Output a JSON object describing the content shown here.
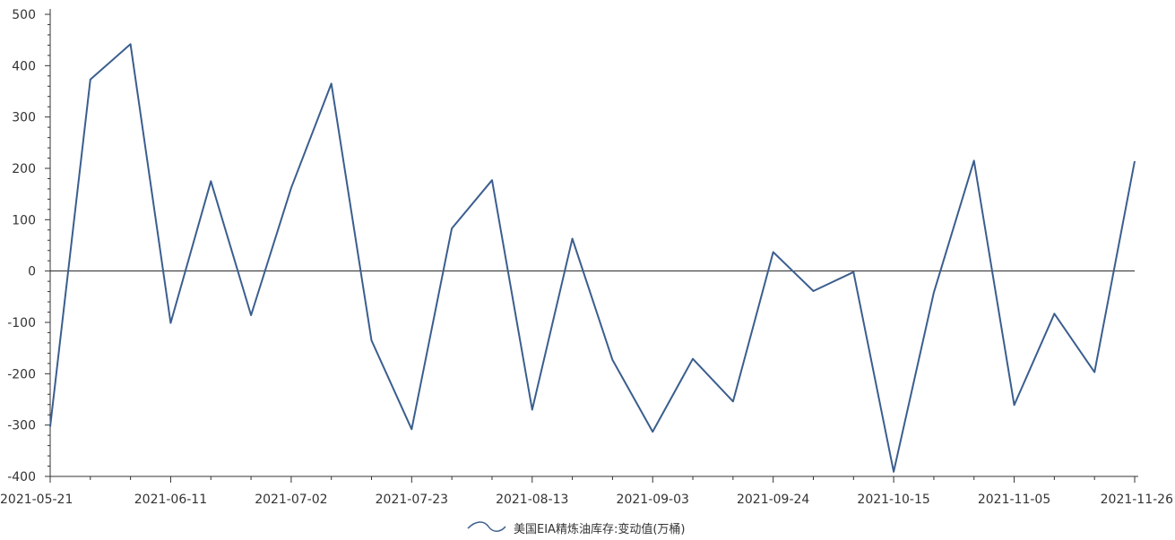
{
  "chart_data": {
    "type": "line",
    "title": "",
    "xlabel": "",
    "ylabel": "",
    "ylim": [
      -400,
      500
    ],
    "yticks": [
      -400,
      -300,
      -200,
      -100,
      0,
      100,
      200,
      300,
      400,
      500
    ],
    "x": [
      "2021-05-21",
      "2021-05-28",
      "2021-06-04",
      "2021-06-11",
      "2021-06-18",
      "2021-06-25",
      "2021-07-02",
      "2021-07-09",
      "2021-07-16",
      "2021-07-23",
      "2021-07-30",
      "2021-08-06",
      "2021-08-13",
      "2021-08-20",
      "2021-08-27",
      "2021-09-03",
      "2021-09-10",
      "2021-09-17",
      "2021-09-24",
      "2021-10-01",
      "2021-10-08",
      "2021-10-15",
      "2021-10-22",
      "2021-10-29",
      "2021-11-05",
      "2021-11-12",
      "2021-11-19",
      "2021-11-26"
    ],
    "x_tick_labels": [
      "2021-05-21",
      "2021-06-11",
      "2021-07-02",
      "2021-07-23",
      "2021-08-13",
      "2021-09-03",
      "2021-09-24",
      "2021-10-15",
      "2021-11-05",
      "2021-11-26"
    ],
    "series": [
      {
        "name": "美国EIA精炼油库存:变动值(万桶)",
        "color": "#3b5e8e",
        "values": [
          -303,
          373,
          442,
          -101,
          175,
          -86,
          162,
          365,
          -135,
          -308,
          83,
          177,
          -270,
          63,
          -173,
          -313,
          -171,
          -254,
          37,
          -39,
          -2,
          -391,
          -42,
          215,
          -261,
          -83,
          -197,
          214
        ]
      }
    ],
    "zero_line": true,
    "legend_position": "bottom-center",
    "grid": false
  }
}
